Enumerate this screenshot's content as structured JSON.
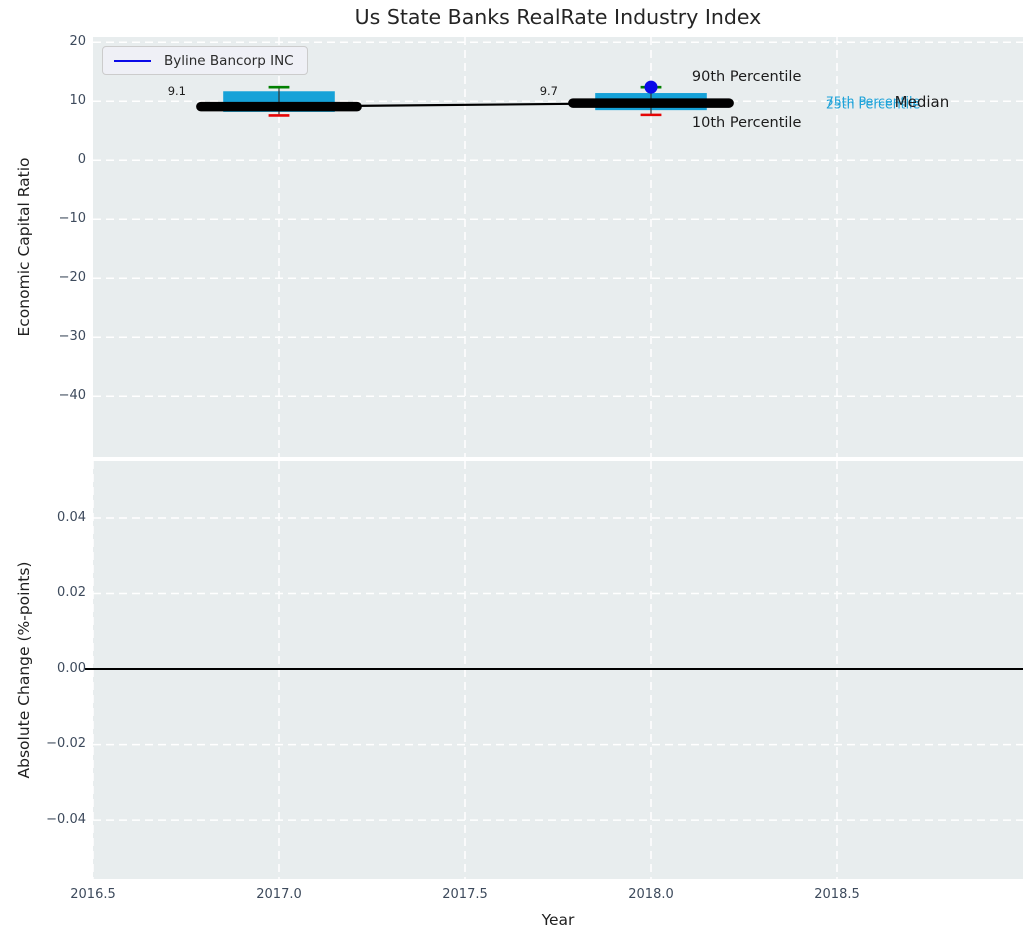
{
  "title": "Us State Banks RealRate Industry Index",
  "legend": {
    "label": "Byline Bancorp INC"
  },
  "colors": {
    "figure_bg": "#ffffff",
    "axes_bg": "#e8edee",
    "grid": "#ffffff",
    "box_fill": "#16a2d8",
    "p90_cap": "#008000",
    "p10_cap": "#e50505",
    "median_line": "#000000",
    "whisker": "#333333",
    "company_blue": "#0a0ae8",
    "percentile_blue": "#1fa3d9",
    "text_dark": "#1c1c1c",
    "tick_text": "#3d4a5c",
    "zero_line": "#000000"
  },
  "chart_data": [
    {
      "type": "box",
      "title": "Us State Banks RealRate Industry Index",
      "ylabel": "Economic Capital Ratio",
      "xlim": [
        2016.5,
        2019.0
      ],
      "ylim": [
        -50.3,
        20.9
      ],
      "yticks": [
        20,
        10,
        0,
        -10,
        -20,
        -30,
        -40
      ],
      "ytick_labels": [
        "20",
        "10",
        "0",
        "−10",
        "−20",
        "−30",
        "−40"
      ],
      "xticks": [
        2017.0,
        2017.5,
        2018.0,
        2018.5
      ],
      "grid": "white-dashed",
      "legend_position": "upper left",
      "box_width": 0.3,
      "median_bar_halfwidth": 0.21,
      "cap_halfwidth": 0.028,
      "boxes": [
        {
          "x": 2017,
          "p10": 7.6,
          "p25": 8.2,
          "median": 9.1,
          "p75": 11.7,
          "p90": 12.4
        },
        {
          "x": 2018,
          "p10": 7.7,
          "p25": 8.5,
          "median": 9.7,
          "p75": 11.4,
          "p90": 12.4
        }
      ],
      "median_trend": [
        {
          "x": 2017,
          "y": 9.1
        },
        {
          "x": 2018,
          "y": 9.7
        }
      ],
      "company_series": {
        "name": "Byline Bancorp INC",
        "color_key": "company_blue",
        "points": [
          {
            "x": 2018,
            "y": 12.4
          }
        ]
      },
      "annotations": [
        {
          "text": "9.1",
          "x": 2016.75,
          "y": 11.8,
          "ha": "right",
          "size": 11.5,
          "color_key": "text_dark"
        },
        {
          "text": "9.7",
          "x": 2017.75,
          "y": 11.8,
          "ha": "right",
          "size": 11.5,
          "color_key": "text_dark"
        },
        {
          "text": "90th Percentile",
          "x": 2018.11,
          "y": 14.1,
          "ha": "left",
          "size": 14.5,
          "color_key": "text_dark"
        },
        {
          "text": "10th Percentile",
          "x": 2018.11,
          "y": 6.4,
          "ha": "left",
          "size": 14.5,
          "color_key": "text_dark"
        },
        {
          "text": "75th Percentile",
          "x": 2018.47,
          "y": 10.1,
          "ha": "left",
          "size": 12.5,
          "color_key": "percentile_blue"
        },
        {
          "text": "25th Percentile",
          "x": 2018.47,
          "y": 9.55,
          "ha": "left",
          "size": 12.5,
          "color_key": "percentile_blue"
        },
        {
          "text": "Median",
          "x": 2018.655,
          "y": 9.95,
          "ha": "left",
          "size": 15,
          "color_key": "text_dark"
        }
      ]
    },
    {
      "type": "line",
      "ylabel": "Absolute Change (%-points)",
      "xlabel": "Year",
      "xlim": [
        2016.5,
        2019.0
      ],
      "ylim": [
        -0.0556,
        0.0551
      ],
      "yticks": [
        0.04,
        0.02,
        0.0,
        -0.02,
        -0.04
      ],
      "ytick_labels": [
        "0.04",
        "0.02",
        "0.00",
        "−0.02",
        "−0.04"
      ],
      "xticks": [
        2016.5,
        2017.0,
        2017.5,
        2018.0,
        2018.5
      ],
      "xtick_labels": [
        "2016.5",
        "2017.0",
        "2017.5",
        "2018.0",
        "2018.5"
      ],
      "grid": "white-dashed",
      "zero_line": 0.0,
      "series": []
    }
  ]
}
